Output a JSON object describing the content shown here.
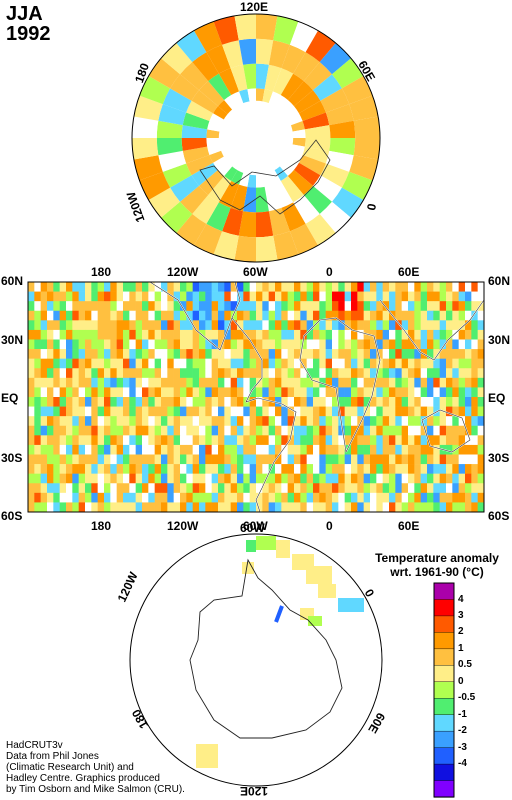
{
  "title": {
    "season": "JJA",
    "year": "1992"
  },
  "north_polar": {
    "labels": {
      "top": "120E",
      "right": "60E",
      "right_lower": "0",
      "left_upper": "180",
      "left_lower": "120W"
    }
  },
  "equatorial": {
    "top_labels": [
      "180",
      "120W",
      "60W",
      "0",
      "60E"
    ],
    "bottom_labels": [
      "180",
      "120W",
      "60W",
      "0",
      "60E"
    ],
    "lat_labels": [
      "60N",
      "30N",
      "EQ",
      "30S",
      "60S"
    ]
  },
  "south_polar": {
    "labels": {
      "top": "60W",
      "left_upper": "120W",
      "right_upper": "0",
      "left_lower": "180",
      "right_lower": "60E",
      "bottom": "120E"
    }
  },
  "legend": {
    "title_line1": "Temperature anomaly",
    "title_line2": "wrt. 1961-90  (°C)",
    "ticks": [
      "4",
      "3",
      "2",
      "1",
      "0.5",
      "0",
      "-0.5",
      "-1",
      "-2",
      "-3",
      "-4"
    ],
    "colors": [
      "#aa00aa",
      "#ff0000",
      "#ff5a00",
      "#ff9a00",
      "#ffc040",
      "#ffee88",
      "#b0ff50",
      "#50ee70",
      "#60d8ff",
      "#3aa0ff",
      "#2060ff",
      "#1010e0",
      "#8000ff"
    ]
  },
  "credits": [
    "HadCRUT3v",
    "Data from Phil Jones",
    "(Climatic Research Unit) and",
    "Hadley Centre.  Graphics produced",
    "by Tim Osborn and Mike Salmon (CRU)."
  ]
}
